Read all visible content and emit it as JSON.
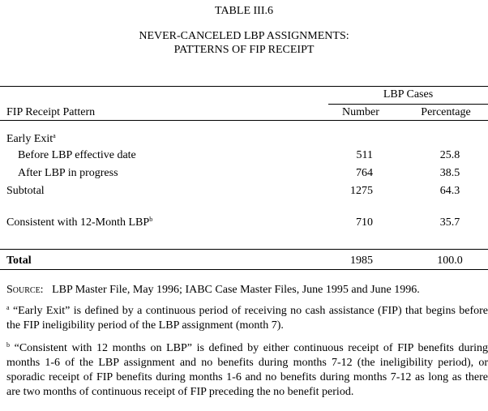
{
  "table_label": "TABLE III.6",
  "title_line1": "NEVER-CANCELED LBP ASSIGNMENTS:",
  "title_line2": "PATTERNS OF FIP RECEIPT",
  "header": {
    "group": "LBP Cases",
    "row_label": "FIP Receipt Pattern",
    "number": "Number",
    "percentage": "Percentage"
  },
  "rows": [
    {
      "label": "Early Exit",
      "sup": "a",
      "number": "",
      "percentage": ""
    },
    {
      "label": "Before LBP effective date",
      "number": "511",
      "percentage": "25.8"
    },
    {
      "label": "After LBP in progress",
      "number": "764",
      "percentage": "38.5"
    },
    {
      "label": "Subtotal",
      "number": "1275",
      "percentage": "64.3"
    },
    {
      "label": "Consistent with 12-Month LBP",
      "sup": "b",
      "number": "710",
      "percentage": "35.7"
    }
  ],
  "total": {
    "label": "Total",
    "number": "1985",
    "percentage": "100.0"
  },
  "source": {
    "label": "Source:",
    "text": "LBP Master File, May 1996; IABC Case Master Files, June 1995 and June 1996."
  },
  "footnotes": [
    {
      "mark": "a",
      "text": "“Early Exit” is defined by a continuous period of receiving no cash assistance (FIP) that begins before the FIP ineligibility period of the LBP assignment (month 7)."
    },
    {
      "mark": "b",
      "text": "“Consistent with 12 months on LBP” is defined by either continuous receipt of FIP benefits during months 1-6 of the LBP assignment and no benefits during months 7-12 (the ineligibility period), or sporadic receipt of FIP benefits during months 1-6 and no benefits during months 7-12 as long as there are two months of continuous receipt of FIP preceding the no benefit period."
    }
  ]
}
